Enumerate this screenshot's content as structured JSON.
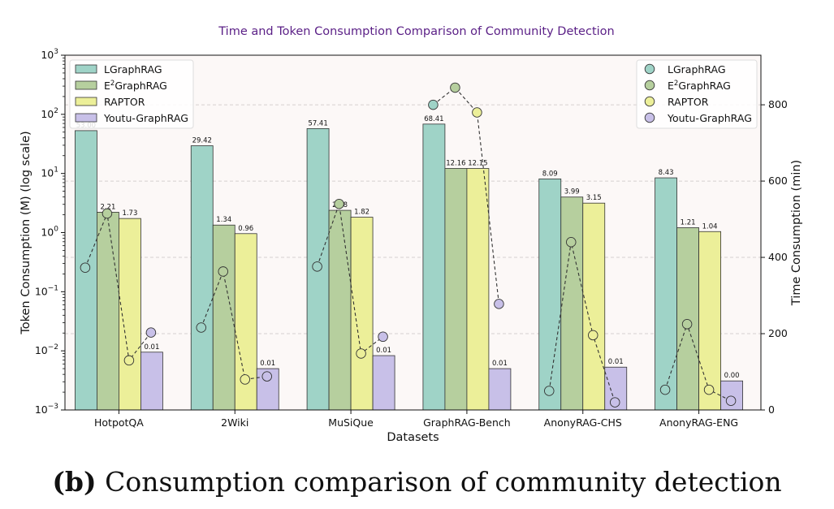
{
  "chart_data": {
    "type": "bar",
    "title": "Time and Token Consumption Comparison of Community Detection",
    "xlabel": "Datasets",
    "ylabel": "Token Consumption (M) (log scale)",
    "ylabel_right": "Time Consumption (min)",
    "y_scale": "log",
    "ylim": [
      0.001,
      1000
    ],
    "ylim_right": [
      0,
      930
    ],
    "y_ticks": [
      {
        "value": 0.001,
        "base": "10",
        "exp": "−3"
      },
      {
        "value": 0.01,
        "base": "10",
        "exp": "−2"
      },
      {
        "value": 0.1,
        "base": "10",
        "exp": "−1"
      },
      {
        "value": 1,
        "base": "10",
        "exp": "0"
      },
      {
        "value": 10,
        "base": "10",
        "exp": "1"
      },
      {
        "value": 100,
        "base": "10",
        "exp": "2"
      },
      {
        "value": 1000,
        "base": "10",
        "exp": "3"
      }
    ],
    "y_right_ticks": [
      0,
      200,
      400,
      600,
      800
    ],
    "grid": true,
    "legend_bars_position": "top-left",
    "legend_points_position": "top-right",
    "categories": [
      "HotpotQA",
      "2Wiki",
      "MuSiQue",
      "GraphRAG-Bench",
      "AnonyRAG-CHS",
      "AnonyRAG-ENG"
    ],
    "series": [
      {
        "name_main": "LGraphRAG",
        "name_sup": "",
        "name_rest": "",
        "color": "#9fd3c7",
        "values": [
          53.0,
          29.42,
          57.41,
          68.41,
          8.09,
          8.43
        ],
        "labels": [
          "53.00",
          "29.42",
          "57.41",
          "68.41",
          "8.09",
          "8.43"
        ],
        "time": [
          373,
          216,
          376,
          800,
          50,
          53
        ]
      },
      {
        "name_main": "E",
        "name_sup": "2",
        "name_rest": "GraphRAG",
        "color": "#b6cf9e",
        "values": [
          2.21,
          1.34,
          2.38,
          12.16,
          3.99,
          1.21
        ],
        "labels": [
          "2.21",
          "1.34",
          "2.38",
          "12.16",
          "3.99",
          "1.21"
        ],
        "time": [
          515,
          363,
          540,
          845,
          440,
          225
        ]
      },
      {
        "name_main": "RAPTOR",
        "name_sup": "",
        "name_rest": "",
        "color": "#ecef99",
        "values": [
          1.73,
          0.96,
          1.82,
          12.15,
          3.15,
          1.04
        ],
        "labels": [
          "1.73",
          "0.96",
          "1.82",
          "12.15",
          "3.15",
          "1.04"
        ],
        "time": [
          130,
          80,
          148,
          780,
          196,
          53
        ]
      },
      {
        "name_main": "Youtu-GraphRAG",
        "name_sup": "",
        "name_rest": "",
        "color": "#c8c0e8",
        "values": [
          0.0095,
          0.005,
          0.0083,
          0.005,
          0.0053,
          0.0031
        ],
        "labels": [
          "0.01",
          "0.01",
          "0.01",
          "0.01",
          "0.01",
          "0.00"
        ],
        "time": [
          203,
          88,
          192,
          278,
          20,
          24
        ]
      }
    ]
  },
  "caption": {
    "label": "(b)",
    "text": "Consumption comparison of community detection"
  }
}
